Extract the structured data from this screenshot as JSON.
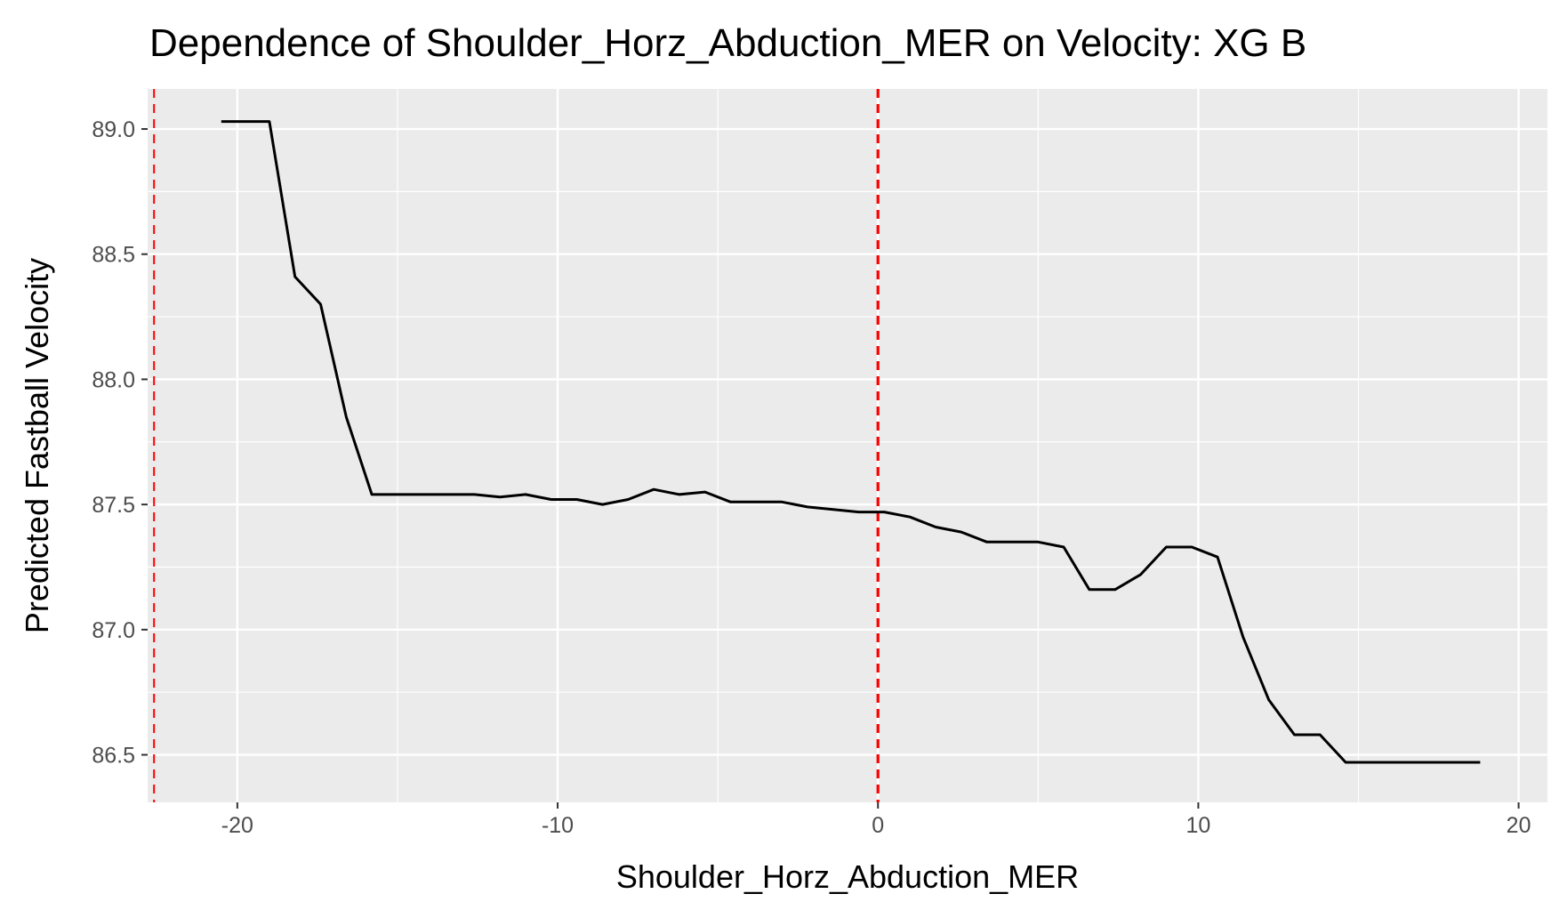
{
  "chart_data": {
    "type": "line",
    "title": "Dependence of Shoulder_Horz_Abduction_MER on Velocity: XG B",
    "xlabel": "Shoulder_Horz_Abduction_MER",
    "ylabel": "Predicted Fastball Velocity",
    "xlim": [
      -22.8,
      20.9
    ],
    "ylim": [
      86.31,
      89.16
    ],
    "x_ticks": [
      -20,
      -10,
      0,
      10,
      20
    ],
    "y_ticks": [
      86.5,
      87.0,
      87.5,
      88.0,
      88.5,
      89.0
    ],
    "x_tick_labels": [
      "-20",
      "-10",
      "0",
      "10",
      "20"
    ],
    "y_tick_labels": [
      "86.5",
      "87.0",
      "87.5",
      "88.0",
      "88.5",
      "89.0"
    ],
    "grid": true,
    "legend": "none",
    "background_color": "#ebebeb",
    "line_color": "#000000",
    "reference_line_color": "#ff0000",
    "reference_lines_x": [
      -22.6,
      0
    ],
    "series": [
      {
        "x": [
          -20.5,
          -19.0,
          -18.2,
          -17.4,
          -16.6,
          -15.8,
          -15.0,
          -14.2,
          -13.4,
          -12.6,
          -11.8,
          -11.0,
          -10.2,
          -9.4,
          -8.6,
          -7.8,
          -7.0,
          -6.2,
          -5.4,
          -4.6,
          -3.8,
          -3.0,
          -2.2,
          -1.4,
          -0.6,
          0.2,
          1.0,
          1.8,
          2.6,
          3.4,
          4.2,
          5.0,
          5.8,
          6.6,
          7.4,
          8.2,
          9.0,
          9.8,
          10.6,
          11.4,
          12.2,
          13.0,
          13.8,
          14.6,
          15.4,
          16.2,
          17.0,
          17.8,
          18.8
        ],
        "y": [
          89.03,
          89.03,
          88.41,
          88.3,
          87.85,
          87.54,
          87.54,
          87.54,
          87.54,
          87.54,
          87.53,
          87.54,
          87.52,
          87.52,
          87.5,
          87.52,
          87.56,
          87.54,
          87.55,
          87.51,
          87.51,
          87.51,
          87.49,
          87.48,
          87.47,
          87.47,
          87.45,
          87.41,
          87.39,
          87.35,
          87.35,
          87.35,
          87.33,
          87.16,
          87.16,
          87.22,
          87.33,
          87.33,
          87.29,
          86.97,
          86.72,
          86.58,
          86.58,
          86.47,
          86.47,
          86.47,
          86.47,
          86.47,
          86.47
        ]
      }
    ]
  }
}
